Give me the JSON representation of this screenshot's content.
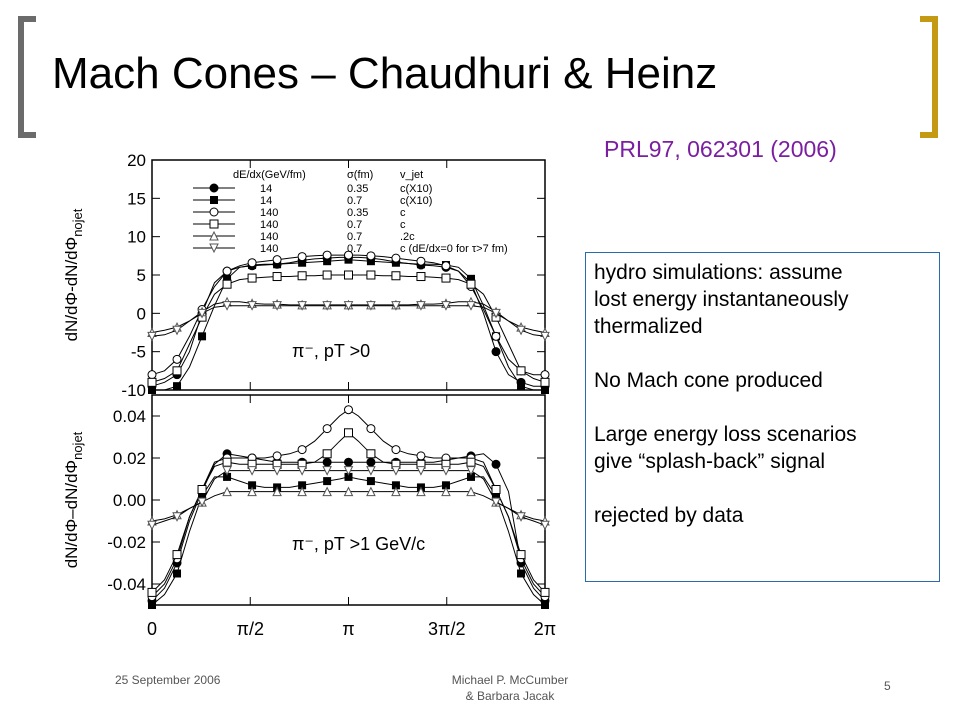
{
  "slide": {
    "title": "Mach Cones – Chaudhuri & Heinz",
    "citation": "PRL97, 062301 (2006)",
    "notes": [
      "hydro simulations: assume\nlost energy instantaneously\nthermalized",
      "No Mach cone produced",
      "Large energy loss scenarios\ngive “splash-back” signal",
      "rejected by data"
    ],
    "accent_colors": {
      "left_bracket": "#6b6b6b",
      "right_bracket": "#c49a14",
      "citation": "#7a1fa0",
      "note_border": "#2a6bb0"
    }
  },
  "footer": {
    "date": "25 September 2006",
    "author": "Michael P. McCumber\n& Barbara Jacak",
    "page": "5"
  },
  "chart_data": [
    {
      "type": "line",
      "panel": "top",
      "ylabel": "dN/dΦ-dN/dΦ",
      "ylabel_sub": "nojet",
      "ylim": [
        -10,
        20
      ],
      "yticks": [
        "20",
        "15",
        "10",
        "5",
        "0",
        "-5",
        "-10"
      ],
      "annotation": "π⁻, pT >0",
      "legend_header": [
        "dE/dx(GeV/fm)",
        "σ(fm)",
        "v_jet"
      ],
      "legend_rows": [
        [
          "14",
          "0.35",
          "c(X10)"
        ],
        [
          "14",
          "0.7",
          "c(X10)"
        ],
        [
          "140",
          "0.35",
          "c"
        ],
        [
          "140",
          "0.7",
          "c"
        ],
        [
          "140",
          "0.7",
          ".2c"
        ],
        [
          "140",
          "0.7",
          "c  (dE/dx=0 for τ>7 fm)"
        ]
      ],
      "x": [
        0,
        0.2,
        0.4,
        0.6,
        0.8,
        1.0,
        1.2,
        1.4,
        1.6,
        1.8,
        2.0,
        2.2,
        2.4,
        2.6,
        2.8,
        3.0,
        3.14159,
        3.3,
        3.5,
        3.7,
        3.9,
        4.1,
        4.3,
        4.5,
        4.7,
        4.9,
        5.1,
        5.3,
        5.5,
        5.7,
        5.9,
        6.1,
        6.28318
      ],
      "series": [
        {
          "marker": "filled-circle",
          "values": [
            -9.5,
            -9,
            -8,
            -5,
            0,
            4,
            5.5,
            6,
            6.2,
            6.3,
            6.4,
            6.6,
            6.9,
            7.1,
            7.2,
            7.3,
            7.3,
            7.3,
            7.2,
            7.0,
            6.7,
            6.5,
            6.3,
            6.2,
            6.0,
            5.5,
            4,
            0,
            -5,
            -8,
            -9,
            -9.5,
            -9.5
          ]
        },
        {
          "marker": "filled-square",
          "values": [
            -10,
            -10,
            -9.5,
            -7,
            -3,
            1,
            4.5,
            6,
            6.3,
            6.4,
            6.4,
            6.5,
            6.6,
            6.7,
            6.8,
            6.9,
            7.0,
            6.9,
            6.8,
            6.7,
            6.6,
            6.5,
            6.4,
            6.4,
            6.3,
            6.0,
            4.5,
            1,
            -3,
            -7,
            -9.5,
            -10,
            -10
          ]
        },
        {
          "marker": "open-circle",
          "values": [
            -8,
            -7.5,
            -6,
            -3,
            0.5,
            3.5,
            5.5,
            6.2,
            6.6,
            6.8,
            7.0,
            7.2,
            7.4,
            7.5,
            7.6,
            7.6,
            7.6,
            7.6,
            7.5,
            7.4,
            7.2,
            7.0,
            6.8,
            6.6,
            6.2,
            5.5,
            3.5,
            0.5,
            -3,
            -6,
            -7.5,
            -8,
            -8
          ]
        },
        {
          "marker": "open-square",
          "values": [
            -9,
            -8.5,
            -7.5,
            -4,
            -0.5,
            2.5,
            3.8,
            4.4,
            4.6,
            4.7,
            4.8,
            4.8,
            4.9,
            4.9,
            5.0,
            5.0,
            5.0,
            5.0,
            5.0,
            4.9,
            4.9,
            4.8,
            4.8,
            4.7,
            4.6,
            4.4,
            3.8,
            2.5,
            -0.5,
            -4,
            -7.5,
            -8.5,
            -9
          ]
        },
        {
          "marker": "open-triangle",
          "values": [
            -2.5,
            -2.2,
            -1.8,
            -1,
            0.2,
            1.2,
            1.5,
            1.5,
            1.3,
            1.2,
            1.2,
            1.1,
            1.1,
            1.1,
            1.1,
            1.1,
            1.1,
            1.1,
            1.1,
            1.1,
            1.1,
            1.1,
            1.2,
            1.2,
            1.3,
            1.5,
            1.5,
            1.2,
            0.2,
            -1,
            -1.8,
            -2.2,
            -2.5
          ]
        },
        {
          "marker": "open-inverted-triangle",
          "values": [
            -3,
            -2.8,
            -2.2,
            -1,
            0,
            0.8,
            1.0,
            1.0,
            1.0,
            1.0,
            1.0,
            1.0,
            1.0,
            1.0,
            1.0,
            1.0,
            1.0,
            1.0,
            1.0,
            1.0,
            1.0,
            1.0,
            1.0,
            1.0,
            1.0,
            1.0,
            1.0,
            0.8,
            0,
            -1,
            -2.2,
            -2.8,
            -3
          ]
        }
      ]
    },
    {
      "type": "line",
      "panel": "bottom",
      "ylabel": "dN/dΦ–dN/dΦ",
      "ylabel_sub": "nojet",
      "ylim": [
        -0.05,
        0.05
      ],
      "yticks": [
        "0.04",
        "0.02",
        "0.00",
        "-0.02",
        "-0.04"
      ],
      "xticks": [
        "0",
        "π/2",
        "π",
        "3π/2",
        "2π"
      ],
      "xlim": [
        0,
        6.28318
      ],
      "annotation": "π⁻, pT >1 GeV/c",
      "x": [
        0,
        0.2,
        0.4,
        0.6,
        0.8,
        1.0,
        1.2,
        1.4,
        1.6,
        1.8,
        2.0,
        2.2,
        2.4,
        2.6,
        2.8,
        3.0,
        3.14159,
        3.3,
        3.5,
        3.7,
        3.9,
        4.1,
        4.3,
        4.5,
        4.7,
        4.9,
        5.1,
        5.3,
        5.5,
        5.7,
        5.9,
        6.1,
        6.28318
      ],
      "series": [
        {
          "marker": "filled-circle",
          "values": [
            -0.048,
            -0.042,
            -0.03,
            -0.01,
            0.004,
            0.017,
            0.022,
            0.021,
            0.02,
            0.019,
            0.018,
            0.018,
            0.018,
            0.018,
            0.018,
            0.018,
            0.018,
            0.018,
            0.018,
            0.018,
            0.018,
            0.018,
            0.018,
            0.018,
            0.019,
            0.02,
            0.021,
            0.022,
            0.017,
            0.004,
            -0.03,
            -0.042,
            -0.048
          ]
        },
        {
          "marker": "filled-square",
          "values": [
            -0.05,
            -0.045,
            -0.035,
            -0.015,
            0.002,
            0.011,
            0.011,
            0.009,
            0.007,
            0.006,
            0.006,
            0.006,
            0.007,
            0.008,
            0.009,
            0.01,
            0.011,
            0.01,
            0.009,
            0.008,
            0.007,
            0.006,
            0.006,
            0.006,
            0.007,
            0.009,
            0.011,
            0.011,
            0.002,
            -0.015,
            -0.035,
            -0.045,
            -0.05
          ]
        },
        {
          "marker": "open-circle",
          "values": [
            -0.046,
            -0.04,
            -0.028,
            -0.008,
            0.005,
            0.018,
            0.02,
            0.02,
            0.02,
            0.02,
            0.021,
            0.022,
            0.024,
            0.028,
            0.034,
            0.04,
            0.043,
            0.04,
            0.034,
            0.028,
            0.024,
            0.022,
            0.021,
            0.02,
            0.02,
            0.02,
            0.02,
            0.018,
            0.005,
            -0.008,
            -0.028,
            -0.04,
            -0.046
          ]
        },
        {
          "marker": "open-square",
          "values": [
            -0.044,
            -0.038,
            -0.026,
            -0.008,
            0.005,
            0.016,
            0.018,
            0.017,
            0.017,
            0.017,
            0.017,
            0.017,
            0.017,
            0.018,
            0.022,
            0.028,
            0.032,
            0.028,
            0.022,
            0.018,
            0.017,
            0.017,
            0.017,
            0.017,
            0.017,
            0.017,
            0.018,
            0.016,
            0.005,
            -0.008,
            -0.026,
            -0.038,
            -0.044
          ]
        },
        {
          "marker": "open-triangle",
          "values": [
            -0.01,
            -0.009,
            -0.007,
            -0.004,
            -0.001,
            0.002,
            0.004,
            0.004,
            0.004,
            0.004,
            0.004,
            0.004,
            0.004,
            0.004,
            0.004,
            0.004,
            0.004,
            0.004,
            0.004,
            0.004,
            0.004,
            0.004,
            0.004,
            0.004,
            0.004,
            0.004,
            0.004,
            0.002,
            -0.001,
            -0.004,
            -0.007,
            -0.009,
            -0.01
          ]
        },
        {
          "marker": "open-inverted-triangle",
          "values": [
            -0.012,
            -0.01,
            -0.008,
            -0.004,
            -0.001,
            0.01,
            0.014,
            0.014,
            0.014,
            0.014,
            0.014,
            0.014,
            0.014,
            0.014,
            0.014,
            0.014,
            0.014,
            0.014,
            0.014,
            0.014,
            0.014,
            0.014,
            0.014,
            0.014,
            0.014,
            0.014,
            0.014,
            0.01,
            -0.001,
            -0.004,
            -0.008,
            -0.01,
            -0.012
          ]
        }
      ]
    }
  ]
}
